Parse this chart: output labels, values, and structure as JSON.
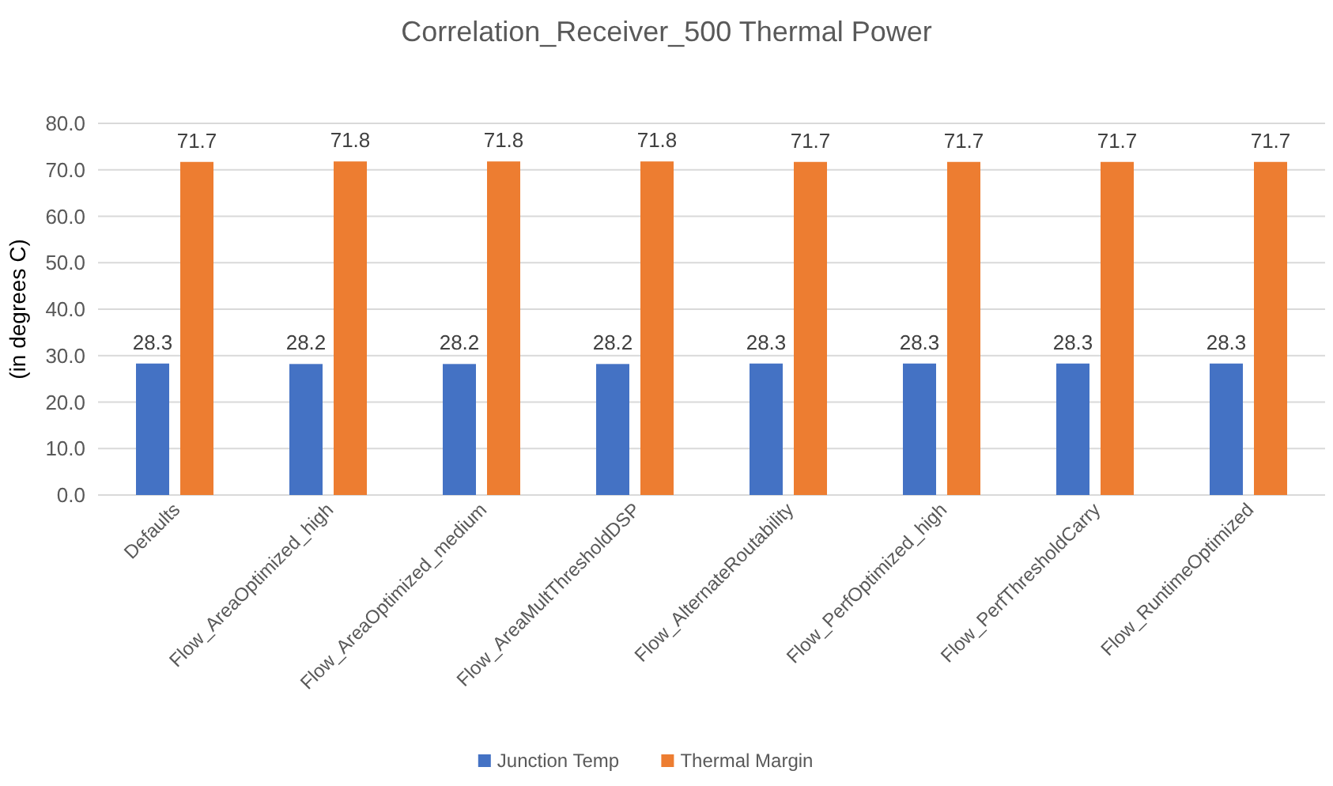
{
  "chart_data": {
    "type": "bar",
    "title": "Correlation_Receiver_500 Thermal Power",
    "ylabel": "(in degrees C)",
    "categories": [
      "Defaults",
      "Flow_AreaOptimized_high",
      "Flow_AreaOptimized_medium",
      "Flow_AreaMultThresholdDSP",
      "Flow_AlternateRoutability",
      "Flow_PerfOptimized_high",
      "Flow_PerfThresholdCarry",
      "Flow_RuntimeOptimized"
    ],
    "series": [
      {
        "name": "Junction Temp",
        "color": "#4472c4",
        "values": [
          28.3,
          28.2,
          28.2,
          28.2,
          28.3,
          28.3,
          28.3,
          28.3
        ]
      },
      {
        "name": "Thermal Margin",
        "color": "#ed7d31",
        "values": [
          71.7,
          71.8,
          71.8,
          71.8,
          71.7,
          71.7,
          71.7,
          71.7
        ]
      }
    ],
    "ylim": [
      0,
      80
    ],
    "yticks": [
      {
        "value": 0,
        "label": "0.0"
      },
      {
        "value": 10,
        "label": "10.0"
      },
      {
        "value": 20,
        "label": "20.0"
      },
      {
        "value": 30,
        "label": "30.0"
      },
      {
        "value": 40,
        "label": "40.0"
      },
      {
        "value": 50,
        "label": "50.0"
      },
      {
        "value": 60,
        "label": "60.0"
      },
      {
        "value": 70,
        "label": "70.0"
      },
      {
        "value": 80,
        "label": "80.0"
      }
    ],
    "grid": "y",
    "legend": "bottom",
    "data_labels": true
  }
}
